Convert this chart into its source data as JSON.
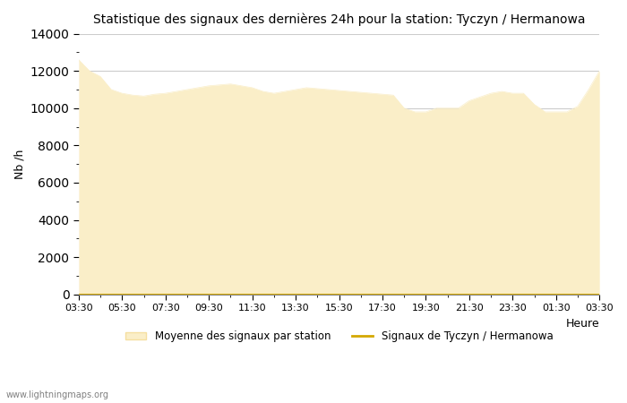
{
  "title": "Statistique des signaux des dernières 24h pour la station: Tyczyn / Hermanowa",
  "xlabel": "Heure",
  "ylabel": "Nb /h",
  "watermark": "www.lightningmaps.org",
  "ylim": [
    0,
    14000
  ],
  "yticks": [
    0,
    2000,
    4000,
    6000,
    8000,
    10000,
    12000,
    14000
  ],
  "xtick_labels": [
    "03:30",
    "05:30",
    "07:30",
    "09:30",
    "11:30",
    "13:30",
    "15:30",
    "17:30",
    "19:30",
    "21:30",
    "23:30",
    "01:30",
    "03:30"
  ],
  "fill_color": "#faeec8",
  "fill_edge_color": "#f5dfa0",
  "line_color": "#d4a800",
  "background_color": "#ffffff",
  "grid_color": "#cccccc",
  "legend_fill_label": "Moyenne des signaux par station",
  "legend_line_label": "Signaux de Tyczyn / Hermanowa",
  "x": [
    0,
    1,
    2,
    3,
    4,
    5,
    6,
    7,
    8,
    9,
    10,
    11,
    12,
    13,
    14,
    15,
    16,
    17,
    18,
    19,
    20,
    21,
    22,
    23,
    24,
    25,
    26,
    27,
    28,
    29,
    30,
    31,
    32,
    33,
    34,
    35,
    36,
    37,
    38,
    39,
    40,
    41,
    42,
    43,
    44,
    45,
    46,
    47,
    48
  ],
  "y_fill": [
    12600,
    12000,
    11700,
    11000,
    10800,
    10700,
    10650,
    10750,
    10800,
    10900,
    11000,
    11100,
    11200,
    11250,
    11300,
    11200,
    11100,
    10900,
    10800,
    10900,
    11000,
    11100,
    11050,
    11000,
    10950,
    10900,
    10850,
    10800,
    10750,
    10700,
    10000,
    9800,
    9800,
    10000,
    10000,
    10000,
    10400,
    10600,
    10800,
    10900,
    10800,
    10800,
    10200,
    9800,
    9800,
    9800,
    10100,
    11000,
    12000
  ],
  "y_line": [
    0,
    0,
    0,
    0,
    0,
    0,
    0,
    0,
    0,
    0,
    0,
    0,
    0,
    0,
    0,
    0,
    0,
    0,
    0,
    0,
    0,
    0,
    0,
    0,
    0,
    0,
    0,
    0,
    0,
    0,
    0,
    0,
    0,
    0,
    0,
    0,
    0,
    0,
    0,
    0,
    0,
    0,
    0,
    0,
    0,
    0,
    0,
    0,
    0
  ]
}
